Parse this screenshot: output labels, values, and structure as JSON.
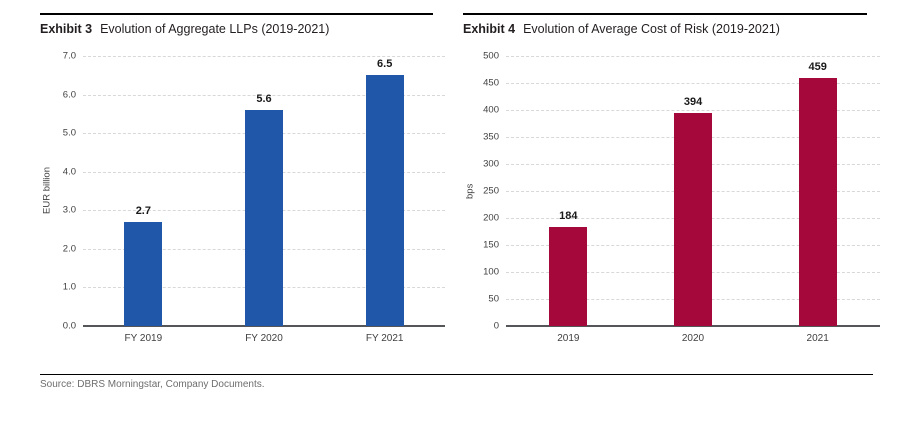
{
  "chart_data": [
    {
      "type": "bar",
      "exhibit_label": "Exhibit 3",
      "title": "Evolution of Aggregate LLPs (2019-2021)",
      "categories": [
        "FY 2019",
        "FY 2020",
        "FY 2021"
      ],
      "values": [
        2.7,
        5.6,
        6.5
      ],
      "data_labels": [
        "2.7",
        "5.6",
        "6.5"
      ],
      "xlabel": "",
      "ylabel": "EUR billion",
      "ylim": [
        0,
        7
      ],
      "yticks": [
        "7.0",
        "6.0",
        "5.0",
        "4.0",
        "3.0",
        "2.0",
        "1.0",
        "0.0"
      ],
      "bar_color": "#2157a8",
      "grid": "horizontal-dashed",
      "legend": "none"
    },
    {
      "type": "bar",
      "exhibit_label": "Exhibit 4",
      "title": "Evolution of Average Cost of Risk (2019-2021)",
      "categories": [
        "2019",
        "2020",
        "2021"
      ],
      "values": [
        184,
        394,
        459
      ],
      "data_labels": [
        "184",
        "394",
        "459"
      ],
      "xlabel": "",
      "ylabel": "bps",
      "ylim": [
        0,
        500
      ],
      "yticks": [
        "500",
        "450",
        "400",
        "350",
        "300",
        "250",
        "200",
        "150",
        "100",
        "50",
        "0"
      ],
      "bar_color": "#a5093c",
      "grid": "horizontal-dashed",
      "legend": "none"
    }
  ],
  "footer": {
    "source_note": "Source: DBRS Morningstar, Company Documents."
  },
  "colors": {
    "bar_blue": "#2157a8",
    "bar_red": "#a5093c",
    "gridline": "#d8d8d8",
    "axis_line": "#55565a",
    "tick_text": "#404040",
    "source_text": "#6e6e6e",
    "rule": "#000000"
  }
}
